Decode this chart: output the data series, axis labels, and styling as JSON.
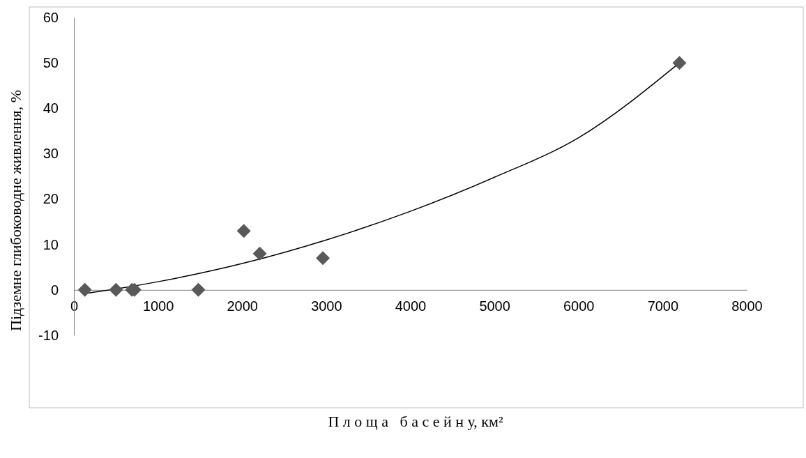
{
  "chart_data": {
    "type": "scatter",
    "xlabel": "П л о щ а   б а с е й н у, км²",
    "ylabel": "Підземне глибоководне живлення, %",
    "xlim": [
      0,
      8000
    ],
    "xticks": [
      0,
      1000,
      2000,
      3000,
      4000,
      5000,
      6000,
      7000,
      8000
    ],
    "ylim": [
      -10,
      60
    ],
    "yticks": [
      -10,
      0,
      10,
      20,
      30,
      40,
      50,
      60
    ],
    "marker": "diamond",
    "grid": false,
    "series": [
      {
        "color": "#595959",
        "x": [
          130,
          500,
          690,
          720,
          1480,
          2020,
          2210,
          2960,
          7200
        ],
        "values": [
          0,
          0,
          0,
          0,
          0,
          13,
          8,
          7,
          50
        ]
      },
      {
        "type": "line",
        "color": "#000000",
        "marker": "none",
        "x": [
          130,
          500,
          1000,
          2000,
          3000,
          4000,
          5000,
          6000,
          7200
        ],
        "values": [
          -0.8,
          0.2,
          1.8,
          5.8,
          11,
          17.3,
          24.8,
          33.5,
          50
        ]
      }
    ]
  }
}
